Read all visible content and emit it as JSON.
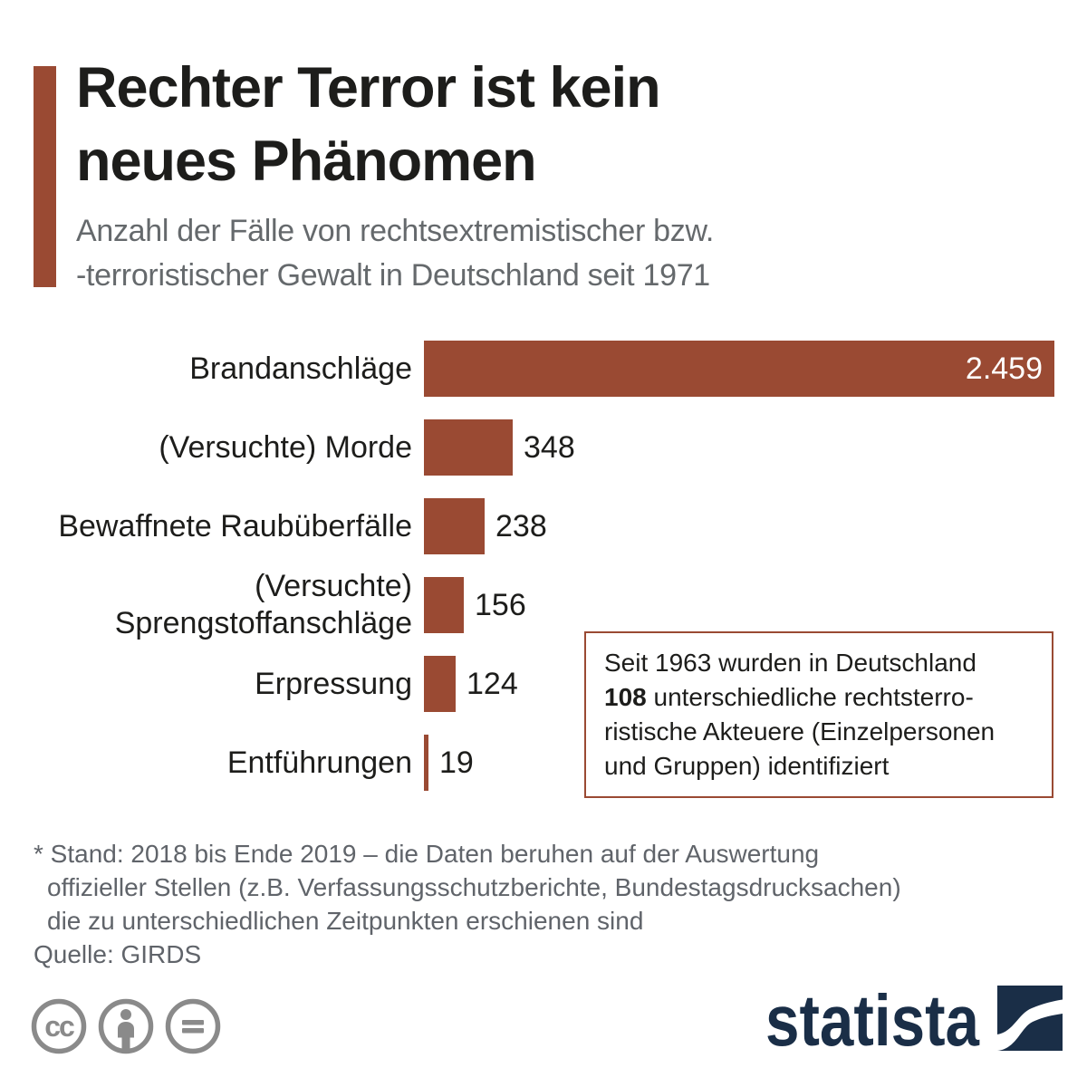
{
  "header": {
    "title_lines": [
      "Rechter Terror ist kein",
      "neues Phänomen"
    ],
    "subtitle_lines": [
      "Anzahl der Fälle von rechtsextremistischer bzw.",
      "-terroristischer Gewalt in Deutschland seit 1971"
    ]
  },
  "chart_data": {
    "type": "bar",
    "orientation": "horizontal",
    "categories": [
      "Brandanschläge",
      "(Versuchte) Morde",
      "Bewaffnete Raubüberfälle",
      "(Versuchte) Sprengstoffanschläge",
      "Erpressung",
      "Entführungen"
    ],
    "values": [
      2459,
      348,
      238,
      156,
      124,
      19
    ],
    "value_labels": [
      "2.459",
      "348",
      "238",
      "156",
      "124",
      "19"
    ],
    "xlim": [
      0,
      2459
    ],
    "grid": false,
    "bar_color": "#9a4a33",
    "value_label_position": "inside for widest bar, outside right for others"
  },
  "infobox": {
    "line1": "Seit 1963 wurden in Deutschland",
    "line2_bold": "108",
    "line2_rest": " unterschiedliche rechtsterro-",
    "line3": "ristische Akteuere (Einzelpersonen",
    "line4": "und Gruppen) identifiziert"
  },
  "footnote": {
    "lines": [
      "* Stand: 2018 bis Ende 2019 – die Daten beruhen auf der Auswertung",
      "offizieller Stellen (z.B. Verfassungsschutzberichte, Bundestagsdrucksachen)",
      "die zu unterschiedlichen Zeitpunkten erschienen sind"
    ],
    "source": "Quelle: GIRDS"
  },
  "branding": {
    "logo_text": "statista",
    "cc_icon_names": [
      "cc-icon",
      "cc-by-icon",
      "cc-nd-icon"
    ]
  },
  "colors": {
    "bar": "#9a4a33",
    "accent_bar": "#9a4a33",
    "title": "#1d1d1b",
    "subtitle": "#65696c",
    "footnote": "#60646a",
    "logo_navy": "#1a2e47",
    "cc_gray": "#8a8a8a",
    "background": "#ffffff"
  }
}
